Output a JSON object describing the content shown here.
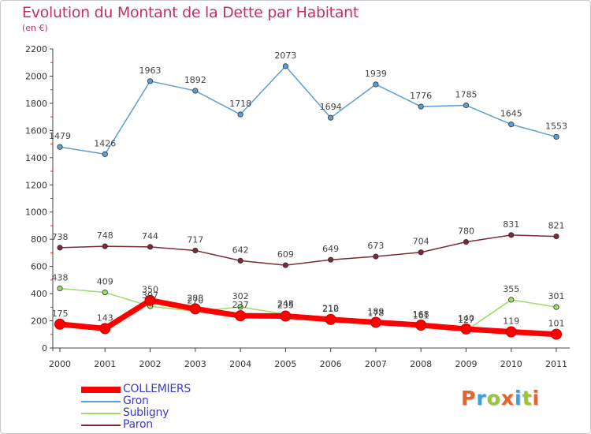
{
  "header": {
    "title": "Evolution du Montant de la Dette par Habitant",
    "subtitle": "(en €)"
  },
  "chart_data": {
    "type": "line",
    "title": "Evolution du Montant de la Dette par Habitant",
    "subtitle": "(en €)",
    "xlabel": "",
    "ylabel": "",
    "x": [
      "2000",
      "2001",
      "2002",
      "2003",
      "2004",
      "2005",
      "2006",
      "2007",
      "2008",
      "2009",
      "2010",
      "2011"
    ],
    "ylim": [
      0,
      2200
    ],
    "yticks": [
      "0",
      "200",
      "400",
      "600",
      "800",
      "1000",
      "1200",
      "1400",
      "1600",
      "1800",
      "2000",
      "2200"
    ],
    "grid": false,
    "legend_position": "bottom-left",
    "series": [
      {
        "name": "COLLEMIERS",
        "color": "#ff0000",
        "values": [
          175,
          143,
          350,
          288,
          237,
          235,
          210,
          189,
          168,
          140,
          119,
          101
        ],
        "labels": [
          "175",
          "143",
          "350",
          "288",
          "237",
          "235",
          "210",
          "189",
          "168",
          "140",
          "119",
          "101"
        ]
      },
      {
        "name": "Gron",
        "color": "#5a9fd4",
        "values": [
          1479,
          1426,
          1963,
          1892,
          1718,
          2073,
          1694,
          1939,
          1776,
          1785,
          1645,
          1553
        ],
        "labels": [
          "1479",
          "1426",
          "1963",
          "1892",
          "1718",
          "2073",
          "1694",
          "1939",
          "1776",
          "1785",
          "1645",
          "1553"
        ]
      },
      {
        "name": "Subligny",
        "color": "#99dd66",
        "values": [
          438,
          409,
          307,
          270,
          302,
          248,
          212,
          178,
          161,
          127,
          355,
          301
        ],
        "labels": [
          "438",
          "409",
          "307",
          "270",
          "302",
          "248",
          "212",
          "178",
          "161",
          "127",
          "355",
          "301"
        ]
      },
      {
        "name": "Paron",
        "color": "#7a2a34",
        "values": [
          738,
          748,
          744,
          717,
          642,
          609,
          649,
          673,
          704,
          780,
          831,
          821
        ],
        "labels": [
          "738",
          "748",
          "744",
          "717",
          "642",
          "609",
          "649",
          "673",
          "704",
          "780",
          "831",
          "821"
        ]
      }
    ]
  },
  "logo": {
    "text": "Proxiti",
    "colors": [
      "#e8632a",
      "#3da0d8",
      "#9bc43a",
      "#e8632a",
      "#3da0d8",
      "#9bc43a",
      "#e8632a"
    ]
  }
}
